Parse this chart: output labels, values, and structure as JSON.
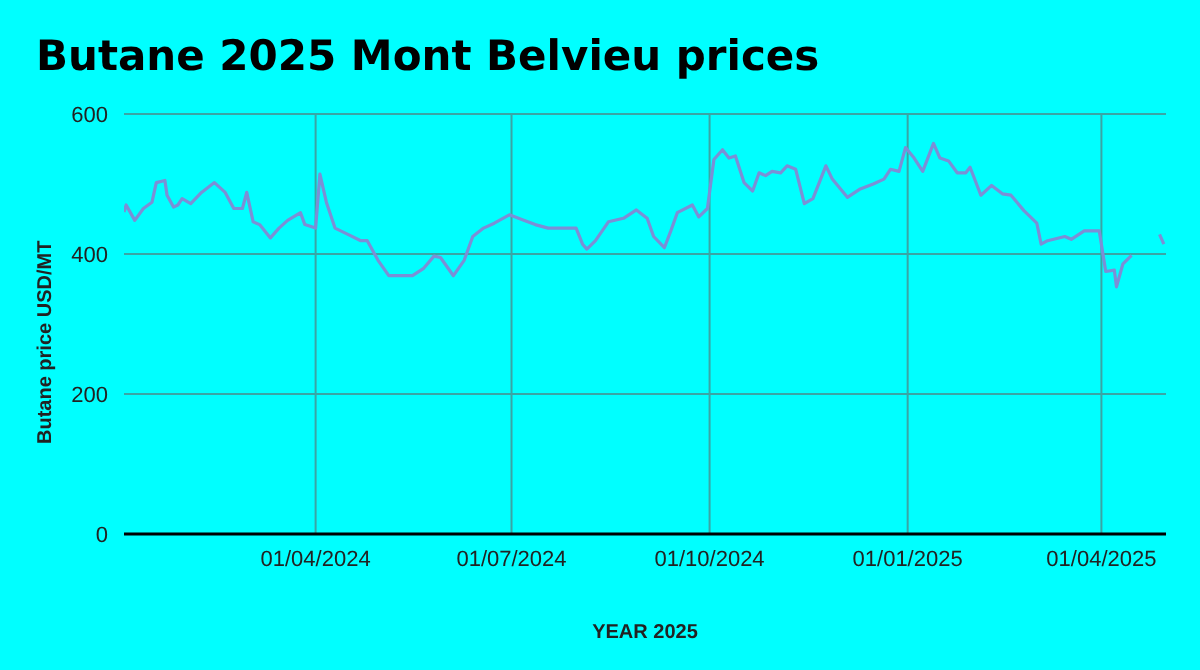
{
  "chart_data": {
    "type": "line",
    "title": "Butane 2025 Mont Belvieu prices",
    "xlabel": "YEAR 2025",
    "ylabel": "Butane price USD/MT",
    "x": [
      "2024-01-03",
      "2024-01-04",
      "2024-01-08",
      "2024-01-12",
      "2024-01-16",
      "2024-01-18",
      "2024-01-22",
      "2024-01-23",
      "2024-01-26",
      "2024-01-28",
      "2024-01-30",
      "2024-02-03",
      "2024-02-08",
      "2024-02-14",
      "2024-02-19",
      "2024-02-23",
      "2024-02-27",
      "2024-02-29",
      "2024-03-03",
      "2024-03-06",
      "2024-03-11",
      "2024-03-15",
      "2024-03-19",
      "2024-03-25",
      "2024-03-27",
      "2024-04-01",
      "2024-04-03",
      "2024-04-06",
      "2024-04-10",
      "2024-04-16",
      "2024-04-22",
      "2024-04-25",
      "2024-04-30",
      "2024-05-05",
      "2024-05-11",
      "2024-05-16",
      "2024-05-21",
      "2024-05-26",
      "2024-05-29",
      "2024-06-04",
      "2024-06-09",
      "2024-06-13",
      "2024-06-18",
      "2024-06-23",
      "2024-06-30",
      "2024-07-07",
      "2024-07-12",
      "2024-07-18",
      "2024-07-31",
      "2024-08-03",
      "2024-08-05",
      "2024-08-09",
      "2024-08-15",
      "2024-08-22",
      "2024-08-28",
      "2024-09-02",
      "2024-09-05",
      "2024-09-10",
      "2024-09-13",
      "2024-09-16",
      "2024-09-23",
      "2024-09-26",
      "2024-09-30",
      "2024-10-03",
      "2024-10-07",
      "2024-10-10",
      "2024-10-13",
      "2024-10-17",
      "2024-10-21",
      "2024-10-24",
      "2024-10-27",
      "2024-10-30",
      "2024-11-03",
      "2024-11-06",
      "2024-11-10",
      "2024-11-14",
      "2024-11-18",
      "2024-11-24",
      "2024-11-27",
      "2024-12-04",
      "2024-12-10",
      "2024-12-16",
      "2024-12-21",
      "2024-12-24",
      "2024-12-28",
      "2024-12-31",
      "2025-01-04",
      "2025-01-08",
      "2025-01-13",
      "2025-01-16",
      "2025-01-20",
      "2025-01-24",
      "2025-01-28",
      "2025-01-30",
      "2025-02-04",
      "2025-02-09",
      "2025-02-14",
      "2025-02-18",
      "2025-02-24",
      "2025-03-02",
      "2025-03-04",
      "2025-03-07",
      "2025-03-15",
      "2025-03-18",
      "2025-03-24",
      "2025-03-31",
      "2025-04-03",
      "2025-04-07",
      "2025-04-08",
      "2025-04-11",
      "2025-04-15",
      "2025-04-22",
      "2025-04-28",
      "2025-04-30"
    ],
    "series": [
      {
        "color": "#7b8fd6",
        "values": [
          460,
          470,
          448,
          465,
          474,
          502,
          505,
          484,
          467,
          470,
          479,
          472,
          488,
          502,
          488,
          465,
          465,
          488,
          446,
          442,
          423,
          437,
          448,
          459,
          442,
          437,
          514,
          474,
          437,
          428,
          419,
          419,
          391,
          369,
          369,
          369,
          379,
          397,
          395,
          369,
          391,
          425,
          437,
          444,
          456,
          448,
          442,
          437,
          437,
          414,
          407,
          419,
          446,
          451,
          463,
          451,
          425,
          409,
          433,
          459,
          470,
          453,
          465,
          535,
          549,
          537,
          540,
          502,
          490,
          516,
          512,
          518,
          516,
          526,
          521,
          472,
          479,
          526,
          507,
          481,
          493,
          500,
          507,
          521,
          518,
          552,
          537,
          518,
          558,
          537,
          533,
          516,
          516,
          524,
          484,
          498,
          486,
          484,
          462,
          444,
          414,
          419,
          425,
          421,
          433,
          433,
          375,
          377,
          353,
          386,
          398,
          null,
          428,
          414
        ]
      }
    ],
    "xlim": [
      "2024-01-03",
      "2025-05-01"
    ],
    "xticks": [
      {
        "value": "2024-04-01",
        "label": "01/04/2024"
      },
      {
        "value": "2024-07-01",
        "label": "01/07/2024"
      },
      {
        "value": "2024-10-01",
        "label": "01/10/2024"
      },
      {
        "value": "2025-01-01",
        "label": "01/01/2025"
      },
      {
        "value": "2025-04-01",
        "label": "01/04/2025"
      }
    ],
    "ylim": [
      0,
      600
    ],
    "yticks": [
      0,
      200,
      400,
      600
    ],
    "grid": true,
    "legend": false,
    "marker": "none",
    "line_style": "solid"
  }
}
